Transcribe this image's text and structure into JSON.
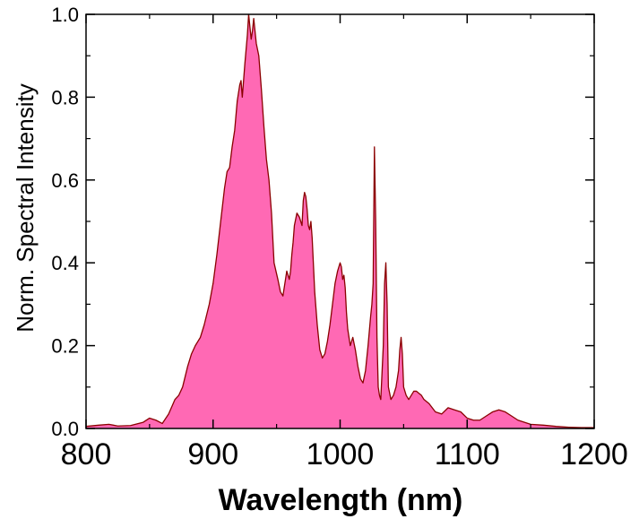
{
  "chart_data": {
    "type": "area",
    "xlabel": "Wavelength (nm)",
    "ylabel": "Norm. Spectral Intensity",
    "xlim": [
      800,
      1200
    ],
    "ylim": [
      0,
      1.0
    ],
    "x_ticks": [
      800,
      900,
      1000,
      1100,
      1200
    ],
    "x_tick_labels": [
      "800",
      "900",
      "1000",
      "1100",
      "1200"
    ],
    "y_ticks": [
      0.0,
      0.2,
      0.4,
      0.6,
      0.8,
      1.0
    ],
    "y_tick_labels": [
      "0.0",
      "0.2",
      "0.4",
      "0.6",
      "0.8",
      "1.0"
    ],
    "grid": false,
    "colors": {
      "fill": "#ff69b4",
      "line": "#8b0000",
      "axis": "#000000"
    },
    "series": [
      {
        "x": [
          800,
          810,
          818,
          825,
          835,
          845,
          850,
          855,
          860,
          865,
          870,
          873,
          876,
          880,
          883,
          886,
          890,
          893,
          897,
          900,
          903,
          906,
          909,
          911,
          913,
          915,
          917,
          919,
          921,
          922,
          923,
          925,
          927,
          928,
          929,
          930,
          931,
          932,
          933,
          934,
          936,
          938,
          940,
          942,
          944,
          946,
          948,
          951,
          953,
          955,
          957,
          958,
          960,
          961,
          962,
          963,
          964,
          966,
          968,
          970,
          971,
          972,
          973,
          974,
          975,
          976,
          977,
          978,
          980,
          982,
          984,
          986,
          988,
          990,
          992,
          994,
          996,
          998,
          999,
          1000,
          1001,
          1002,
          1003,
          1004,
          1005,
          1006,
          1008,
          1010,
          1012,
          1014,
          1016,
          1018,
          1020,
          1022,
          1024,
          1025,
          1026,
          1027,
          1028,
          1029,
          1030,
          1031,
          1032,
          1034,
          1035,
          1036,
          1037,
          1038,
          1040,
          1042,
          1044,
          1046,
          1047,
          1048,
          1049,
          1050,
          1052,
          1054,
          1056,
          1058,
          1060,
          1062,
          1064,
          1066,
          1070,
          1075,
          1080,
          1085,
          1090,
          1095,
          1100,
          1105,
          1110,
          1115,
          1120,
          1125,
          1130,
          1135,
          1140,
          1150,
          1160,
          1170,
          1180,
          1190,
          1200
        ],
        "y": [
          0.005,
          0.008,
          0.01,
          0.006,
          0.007,
          0.015,
          0.025,
          0.02,
          0.012,
          0.035,
          0.07,
          0.08,
          0.1,
          0.15,
          0.18,
          0.2,
          0.22,
          0.25,
          0.3,
          0.35,
          0.42,
          0.5,
          0.58,
          0.62,
          0.63,
          0.68,
          0.72,
          0.79,
          0.83,
          0.84,
          0.8,
          0.88,
          0.95,
          1.0,
          0.97,
          0.94,
          0.96,
          0.99,
          0.96,
          0.93,
          0.9,
          0.82,
          0.73,
          0.65,
          0.6,
          0.52,
          0.4,
          0.36,
          0.33,
          0.32,
          0.36,
          0.38,
          0.36,
          0.38,
          0.42,
          0.45,
          0.49,
          0.52,
          0.51,
          0.49,
          0.55,
          0.57,
          0.56,
          0.53,
          0.49,
          0.48,
          0.5,
          0.46,
          0.33,
          0.25,
          0.19,
          0.17,
          0.18,
          0.21,
          0.25,
          0.3,
          0.35,
          0.38,
          0.39,
          0.4,
          0.39,
          0.36,
          0.37,
          0.34,
          0.28,
          0.24,
          0.2,
          0.22,
          0.19,
          0.15,
          0.12,
          0.11,
          0.14,
          0.2,
          0.27,
          0.3,
          0.35,
          0.68,
          0.5,
          0.22,
          0.1,
          0.08,
          0.07,
          0.2,
          0.35,
          0.4,
          0.3,
          0.1,
          0.07,
          0.08,
          0.1,
          0.14,
          0.19,
          0.22,
          0.18,
          0.1,
          0.08,
          0.07,
          0.08,
          0.09,
          0.09,
          0.085,
          0.08,
          0.07,
          0.06,
          0.04,
          0.035,
          0.05,
          0.045,
          0.04,
          0.025,
          0.02,
          0.02,
          0.03,
          0.04,
          0.045,
          0.04,
          0.03,
          0.02,
          0.01,
          0.008,
          0.005,
          0.003,
          0.002,
          0.002
        ]
      }
    ]
  }
}
